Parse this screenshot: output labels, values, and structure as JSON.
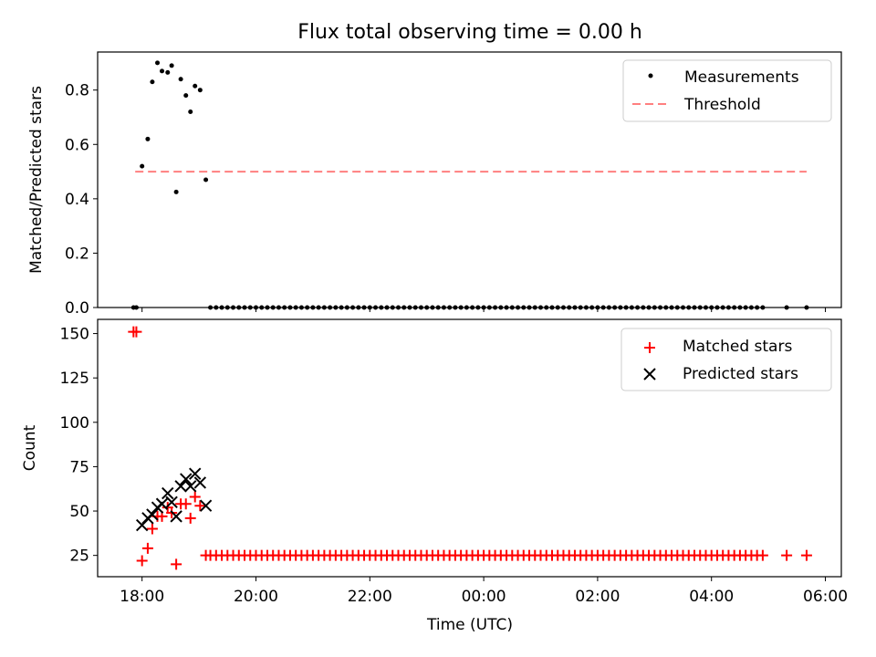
{
  "figure": {
    "title": "Flux total observing time = 0.00 h",
    "xlabel": "Time (UTC)",
    "x_ticks": [
      "18:00",
      "20:00",
      "22:00",
      "00:00",
      "02:00",
      "04:00",
      "06:00"
    ]
  },
  "chart_data": [
    {
      "type": "scatter",
      "ylabel": "Matched/Predicted stars",
      "y_ticks": [
        "0.0",
        "0.2",
        "0.4",
        "0.6",
        "0.8"
      ],
      "ylim": [
        0,
        0.94
      ],
      "xlim_hours": [
        17.22,
        30.28
      ],
      "x_unit": "hours after midnight of first night (UTC)",
      "legend": {
        "position": "top-right",
        "entries": [
          "Measurements",
          "Threshold"
        ]
      },
      "colors": {
        "measurements": "#000000",
        "threshold": "#ff7f7f"
      },
      "threshold": {
        "name": "Threshold",
        "value": 0.5,
        "x_range": [
          17.88,
          29.67
        ]
      },
      "series": [
        {
          "name": "Measurements",
          "points": [
            [
              17.85,
              0.0
            ],
            [
              17.9,
              0.0
            ],
            [
              18.0,
              0.52
            ],
            [
              18.1,
              0.62
            ],
            [
              18.18,
              0.83
            ],
            [
              18.27,
              0.9
            ],
            [
              18.35,
              0.87
            ],
            [
              18.45,
              0.865
            ],
            [
              18.52,
              0.89
            ],
            [
              18.6,
              0.425
            ],
            [
              18.68,
              0.84
            ],
            [
              18.77,
              0.78
            ],
            [
              18.85,
              0.72
            ],
            [
              18.93,
              0.815
            ],
            [
              19.02,
              0.8
            ],
            [
              19.12,
              0.47
            ]
          ]
        }
      ]
    },
    {
      "type": "scatter",
      "ylabel": "Count",
      "y_ticks": [
        "25",
        "50",
        "75",
        "100",
        "125",
        "150"
      ],
      "ylim": [
        13,
        158
      ],
      "legend": {
        "position": "top-right",
        "entries": [
          "Matched stars",
          "Predicted stars"
        ]
      },
      "colors": {
        "matched": "#ff0000",
        "predicted": "#000000"
      },
      "series": [
        {
          "name": "Matched stars",
          "points": [
            [
              17.85,
              151
            ],
            [
              17.9,
              151
            ],
            [
              18.0,
              22
            ],
            [
              18.1,
              29
            ],
            [
              18.18,
              40
            ],
            [
              18.27,
              47
            ],
            [
              18.35,
              47
            ],
            [
              18.45,
              52
            ],
            [
              18.52,
              49
            ],
            [
              18.6,
              20
            ],
            [
              18.68,
              54
            ],
            [
              18.77,
              54
            ],
            [
              18.85,
              46
            ],
            [
              18.93,
              58
            ],
            [
              19.02,
              53
            ],
            [
              19.12,
              25
            ]
          ]
        },
        {
          "name": "Predicted stars",
          "points": [
            [
              18.0,
              42
            ],
            [
              18.1,
              46
            ],
            [
              18.18,
              48
            ],
            [
              18.27,
              52
            ],
            [
              18.35,
              54
            ],
            [
              18.45,
              60
            ],
            [
              18.52,
              55
            ],
            [
              18.6,
              47
            ],
            [
              18.68,
              64
            ],
            [
              18.77,
              68
            ],
            [
              18.85,
              64
            ],
            [
              18.93,
              71
            ],
            [
              19.02,
              66
            ],
            [
              19.12,
              53
            ]
          ]
        }
      ],
      "zero_run": {
        "from": 19.2,
        "to": 28.95,
        "step": 0.1,
        "extra_x": [
          29.32,
          29.67
        ],
        "count_value": 25,
        "ratio_value": 0
      }
    }
  ]
}
